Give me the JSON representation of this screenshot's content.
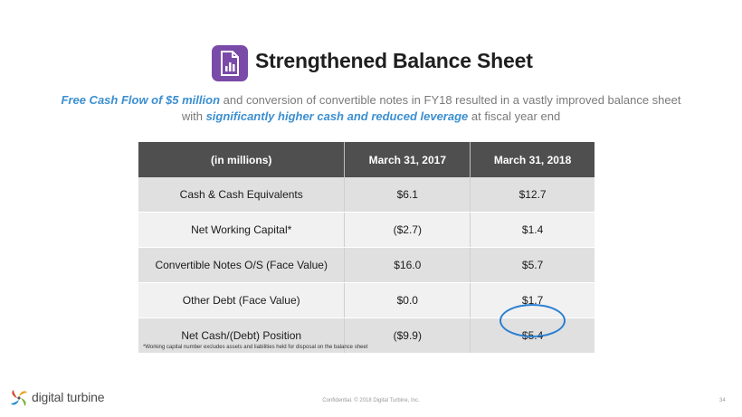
{
  "slide": {
    "title": "Strengthened Balance Sheet",
    "subtitle": {
      "line1_highlight": "Free Cash Flow of $5 million",
      "line1_rest": " and conversion of convertible notes in FY18 resulted in a vastly improved balance sheet",
      "line2_prefix": "with ",
      "line2_highlight": "significantly higher cash and reduced leverage",
      "line2_rest": " at fiscal year end"
    },
    "icon": "document-chart-icon",
    "accent_color": "#3b8fd0",
    "icon_color": "#7a4aa8"
  },
  "table": {
    "headers": [
      "(in millions)",
      "March 31, 2017",
      "March 31, 2018"
    ],
    "rows": [
      {
        "label": "Cash & Cash Equivalents",
        "fy17": "$6.1",
        "fy18": "$12.7"
      },
      {
        "label": "Net Working Capital*",
        "fy17": "($2.7)",
        "fy18": "$1.4"
      },
      {
        "label": "Convertible Notes O/S (Face Value)",
        "fy17": "$16.0",
        "fy18": "$5.7"
      },
      {
        "label": "Other Debt (Face Value)",
        "fy17": "$0.0",
        "fy18": "$1.7"
      },
      {
        "label": "Net Cash/(Debt) Position",
        "fy17": "($9.9)",
        "fy18": "$5.4"
      }
    ],
    "header_color": "#4f4f4f",
    "highlight_color": "#2a7fd2"
  },
  "footnote": "*Working capital number excludes assets and liabilities held for disposal on the balance sheet",
  "footer": {
    "logo_text": "digital turbine",
    "confidential": "Confidential. © 2018 Digital Turbine, Inc.",
    "page_number": "34"
  }
}
